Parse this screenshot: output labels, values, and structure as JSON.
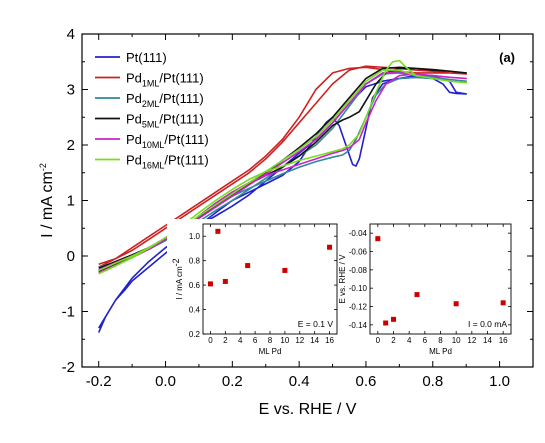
{
  "chart_data": {
    "type": "line",
    "panel_label": "(a)",
    "xlabel": "E vs. RHE / V",
    "ylabel_main": "I / mA cm",
    "ylabel_sup": "-2",
    "xlim": [
      -0.25,
      1.1
    ],
    "ylim": [
      -2,
      4
    ],
    "x_ticks": [
      -0.2,
      0.0,
      0.2,
      0.4,
      0.6,
      0.8,
      1.0
    ],
    "x_tick_labels": [
      "-0.2",
      "0.0",
      "0.2",
      "0.4",
      "0.6",
      "0.8",
      "1.0"
    ],
    "y_ticks": [
      -2,
      -1,
      0,
      1,
      2,
      3,
      4
    ],
    "y_tick_labels": [
      "-2",
      "-1",
      "0",
      "1",
      "2",
      "3",
      "4"
    ],
    "legend_placement": "top-left",
    "series": [
      {
        "name_main": "Pt(111)",
        "name_sub": "",
        "name_tail": "",
        "color": "#2222cc",
        "x": [
          -0.2,
          -0.18,
          -0.15,
          -0.12,
          -0.1,
          -0.05,
          0.0,
          0.05,
          0.1,
          0.15,
          0.2,
          0.25,
          0.3,
          0.35,
          0.4,
          0.45,
          0.48,
          0.5,
          0.52,
          0.54,
          0.56,
          0.57,
          0.58,
          0.6,
          0.62,
          0.65,
          0.7,
          0.75,
          0.8,
          0.83,
          0.85,
          0.87,
          0.9,
          0.87,
          0.85,
          0.8,
          0.75,
          0.7,
          0.65,
          0.6,
          0.55,
          0.5,
          0.45,
          0.4,
          0.35,
          0.3,
          0.25,
          0.2,
          0.15,
          0.1,
          0.05,
          0.0,
          -0.05,
          -0.1,
          -0.15,
          -0.2
        ],
        "y": [
          -1.38,
          -1.1,
          -0.8,
          -0.6,
          -0.45,
          -0.2,
          0.05,
          0.3,
          0.55,
          0.78,
          1.0,
          1.15,
          1.3,
          1.45,
          1.7,
          2.15,
          2.4,
          2.5,
          2.35,
          2.0,
          1.65,
          1.62,
          1.75,
          2.3,
          2.85,
          3.1,
          3.2,
          3.22,
          3.2,
          3.1,
          2.95,
          2.93,
          2.92,
          2.95,
          3.15,
          3.25,
          3.25,
          3.2,
          3.15,
          3.05,
          2.75,
          2.4,
          2.1,
          1.85,
          1.6,
          1.35,
          1.1,
          0.9,
          0.72,
          0.55,
          0.35,
          0.15,
          -0.1,
          -0.4,
          -0.8,
          -1.3
        ]
      },
      {
        "name_main": "Pd",
        "name_sub": "1ML",
        "name_tail": "/Pt(111)",
        "color": "#cc2222",
        "x": [
          -0.2,
          -0.15,
          -0.1,
          -0.05,
          0.0,
          0.05,
          0.1,
          0.15,
          0.2,
          0.25,
          0.3,
          0.35,
          0.4,
          0.45,
          0.5,
          0.55,
          0.6,
          0.65,
          0.7,
          0.75,
          0.8,
          0.85,
          0.9,
          0.85,
          0.8,
          0.75,
          0.7,
          0.65,
          0.6,
          0.55,
          0.5,
          0.45,
          0.4,
          0.35,
          0.3,
          0.25,
          0.2,
          0.15,
          0.1,
          0.05,
          0.0,
          -0.05,
          -0.1,
          -0.15,
          -0.2
        ],
        "y": [
          -0.2,
          -0.05,
          0.15,
          0.35,
          0.55,
          0.75,
          0.95,
          1.15,
          1.35,
          1.55,
          1.8,
          2.1,
          2.5,
          3.0,
          3.3,
          3.38,
          3.4,
          3.36,
          3.32,
          3.3,
          3.3,
          3.3,
          3.28,
          3.3,
          3.33,
          3.35,
          3.38,
          3.4,
          3.42,
          3.35,
          3.1,
          2.75,
          2.4,
          2.05,
          1.75,
          1.5,
          1.3,
          1.1,
          0.9,
          0.7,
          0.5,
          0.3,
          0.1,
          -0.05,
          -0.15
        ]
      },
      {
        "name_main": "Pd",
        "name_sub": "2ML",
        "name_tail": "/Pt(111)",
        "color": "#338899",
        "x": [
          -0.2,
          -0.15,
          -0.1,
          -0.05,
          0.0,
          0.05,
          0.1,
          0.15,
          0.2,
          0.25,
          0.3,
          0.35,
          0.4,
          0.45,
          0.5,
          0.53,
          0.55,
          0.57,
          0.6,
          0.63,
          0.66,
          0.7,
          0.75,
          0.8,
          0.85,
          0.9,
          0.85,
          0.8,
          0.75,
          0.7,
          0.65,
          0.6,
          0.55,
          0.5,
          0.45,
          0.4,
          0.35,
          0.3,
          0.25,
          0.2,
          0.15,
          0.1,
          0.05,
          0.0,
          -0.05,
          -0.1,
          -0.15,
          -0.2
        ],
        "y": [
          -0.25,
          -0.12,
          0.0,
          0.15,
          0.3,
          0.5,
          0.7,
          0.9,
          1.08,
          1.22,
          1.35,
          1.48,
          1.6,
          1.7,
          1.78,
          1.82,
          1.9,
          2.1,
          2.5,
          2.9,
          3.1,
          3.2,
          3.22,
          3.2,
          3.18,
          3.15,
          3.18,
          3.22,
          3.25,
          3.3,
          3.28,
          3.1,
          2.7,
          2.3,
          2.0,
          1.8,
          1.6,
          1.4,
          1.2,
          1.0,
          0.82,
          0.62,
          0.45,
          0.28,
          0.12,
          0.0,
          -0.12,
          -0.2
        ]
      },
      {
        "name_main": "Pd",
        "name_sub": "5ML",
        "name_tail": "/Pt(111)",
        "color": "#111111",
        "x": [
          -0.2,
          -0.15,
          -0.1,
          -0.05,
          0.0,
          0.05,
          0.1,
          0.15,
          0.2,
          0.25,
          0.3,
          0.35,
          0.4,
          0.45,
          0.5,
          0.53,
          0.55,
          0.58,
          0.6,
          0.63,
          0.66,
          0.7,
          0.75,
          0.8,
          0.85,
          0.9,
          0.85,
          0.8,
          0.75,
          0.7,
          0.65,
          0.6,
          0.55,
          0.5,
          0.45,
          0.4,
          0.35,
          0.3,
          0.25,
          0.2,
          0.15,
          0.1,
          0.05,
          0.0,
          -0.05,
          -0.1,
          -0.15,
          -0.2
        ],
        "y": [
          -0.28,
          -0.15,
          -0.02,
          0.12,
          0.3,
          0.5,
          0.72,
          0.95,
          1.15,
          1.3,
          1.45,
          1.6,
          1.8,
          2.05,
          2.35,
          2.45,
          2.5,
          2.6,
          2.8,
          3.1,
          3.3,
          3.38,
          3.38,
          3.35,
          3.33,
          3.3,
          3.33,
          3.36,
          3.38,
          3.4,
          3.38,
          3.2,
          2.85,
          2.5,
          2.2,
          1.95,
          1.72,
          1.5,
          1.3,
          1.1,
          0.9,
          0.7,
          0.5,
          0.32,
          0.15,
          0.02,
          -0.1,
          -0.22
        ]
      },
      {
        "name_main": "Pd",
        "name_sub": "10ML",
        "name_tail": "/Pt(111)",
        "color": "#cc22cc",
        "x": [
          -0.2,
          -0.15,
          -0.1,
          -0.05,
          0.0,
          0.05,
          0.1,
          0.15,
          0.2,
          0.25,
          0.3,
          0.35,
          0.4,
          0.45,
          0.5,
          0.53,
          0.55,
          0.58,
          0.6,
          0.63,
          0.66,
          0.7,
          0.75,
          0.8,
          0.85,
          0.9,
          0.85,
          0.8,
          0.75,
          0.7,
          0.65,
          0.6,
          0.55,
          0.5,
          0.45,
          0.4,
          0.35,
          0.3,
          0.25,
          0.2,
          0.15,
          0.1,
          0.05,
          0.0,
          -0.05,
          -0.1,
          -0.15,
          -0.2
        ],
        "y": [
          -0.3,
          -0.17,
          -0.03,
          0.12,
          0.3,
          0.5,
          0.72,
          0.95,
          1.15,
          1.32,
          1.45,
          1.55,
          1.65,
          1.75,
          1.85,
          1.9,
          1.95,
          2.1,
          2.4,
          2.8,
          3.1,
          3.25,
          3.28,
          3.25,
          3.22,
          3.2,
          3.22,
          3.25,
          3.28,
          3.32,
          3.3,
          3.1,
          2.75,
          2.4,
          2.1,
          1.88,
          1.68,
          1.48,
          1.28,
          1.08,
          0.88,
          0.68,
          0.48,
          0.3,
          0.13,
          0.0,
          -0.12,
          -0.25
        ]
      },
      {
        "name_main": "Pd",
        "name_sub": "16ML",
        "name_tail": "/Pt(111)",
        "color": "#77dd22",
        "x": [
          -0.2,
          -0.15,
          -0.1,
          -0.05,
          0.0,
          0.05,
          0.1,
          0.15,
          0.2,
          0.25,
          0.3,
          0.35,
          0.4,
          0.45,
          0.5,
          0.53,
          0.55,
          0.58,
          0.6,
          0.63,
          0.66,
          0.68,
          0.7,
          0.72,
          0.75,
          0.8,
          0.85,
          0.9,
          0.85,
          0.8,
          0.75,
          0.7,
          0.65,
          0.6,
          0.55,
          0.5,
          0.45,
          0.4,
          0.35,
          0.3,
          0.25,
          0.2,
          0.15,
          0.1,
          0.05,
          0.0,
          -0.05,
          -0.1,
          -0.15,
          -0.2
        ],
        "y": [
          -0.32,
          -0.18,
          -0.03,
          0.14,
          0.33,
          0.55,
          0.78,
          1.0,
          1.2,
          1.38,
          1.52,
          1.62,
          1.72,
          1.8,
          1.88,
          1.93,
          2.0,
          2.2,
          2.5,
          2.95,
          3.35,
          3.5,
          3.52,
          3.4,
          3.25,
          3.2,
          3.15,
          3.12,
          3.15,
          3.2,
          3.25,
          3.35,
          3.35,
          3.15,
          2.8,
          2.45,
          2.15,
          1.92,
          1.72,
          1.52,
          1.32,
          1.12,
          0.92,
          0.72,
          0.52,
          0.33,
          0.15,
          0.0,
          -0.13,
          -0.26
        ]
      }
    ],
    "insets": [
      {
        "type": "scatter",
        "xlabel": "ML Pd",
        "ylabel_main": "I / mA cm",
        "ylabel_sup": "-2",
        "note": "E = 0.1 V",
        "xlim": [
          -1,
          17
        ],
        "ylim": [
          0.2,
          1.1
        ],
        "x_ticks": [
          0,
          2,
          4,
          6,
          8,
          10,
          12,
          14,
          16
        ],
        "x_tick_labels": [
          "0",
          "2",
          "4",
          "6",
          "8",
          "10",
          "12",
          "14",
          "16"
        ],
        "y_ticks": [
          0.2,
          0.4,
          0.6,
          0.8,
          1.0
        ],
        "y_tick_labels": [
          "0.2",
          "0.4",
          "0.6",
          "0.8",
          "1.0"
        ],
        "x": [
          0,
          1,
          2,
          5,
          10,
          16
        ],
        "y": [
          0.61,
          1.04,
          0.63,
          0.76,
          0.72,
          0.91
        ],
        "color": "#cc0000"
      },
      {
        "type": "scatter",
        "xlabel": "ML Pd",
        "ylabel_main": "E vs. RHE / V",
        "ylabel_sup": "",
        "note": "I = 0.0 mA",
        "xlim": [
          -1,
          17
        ],
        "ylim": [
          -0.15,
          -0.03
        ],
        "x_ticks": [
          0,
          2,
          4,
          6,
          8,
          10,
          12,
          14,
          16
        ],
        "x_tick_labels": [
          "0",
          "2",
          "4",
          "6",
          "8",
          "10",
          "12",
          "14",
          "16"
        ],
        "y_ticks": [
          -0.14,
          -0.12,
          -0.1,
          -0.08,
          -0.06,
          -0.04
        ],
        "y_tick_labels": [
          "-0.14",
          "-0.12",
          "-0.10",
          "-0.08",
          "-0.06",
          "-0.04"
        ],
        "x": [
          0,
          1,
          2,
          5,
          10,
          16
        ],
        "y": [
          -0.046,
          -0.138,
          -0.134,
          -0.107,
          -0.117,
          -0.116
        ],
        "color": "#cc0000"
      }
    ]
  }
}
